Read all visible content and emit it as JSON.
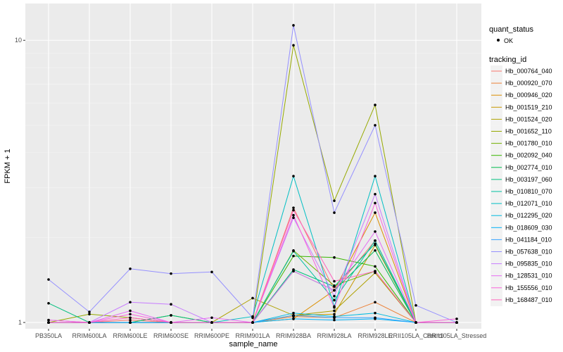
{
  "chart_data": {
    "type": "line",
    "xlabel": "sample_name",
    "ylabel": "FPKM + 1",
    "y_scale": "log10",
    "ylim": [
      0.95,
      13.5
    ],
    "y_ticks": [
      {
        "value": 1,
        "label": "1"
      },
      {
        "value": 10,
        "label": "10"
      }
    ],
    "categories": [
      "PB350LA",
      "RRIM600LA",
      "RRIM600LE",
      "RRIM600SE",
      "RRIM600PE",
      "RRIM901LA",
      "RRIM928BA",
      "RRIM928LA",
      "RRIM928LE",
      "RRII105LA_Control",
      "RRII105LA_Stressed"
    ],
    "legend": {
      "quant_title": "quant_status",
      "quant_label": "OK",
      "tracking_title": "tracking_id"
    },
    "series": [
      {
        "name": "Hb_000764_040",
        "color": "#F8766D",
        "values": [
          1.02,
          1.0,
          1.02,
          1.0,
          1.0,
          1.0,
          2.55,
          1.3,
          1.95,
          1.0,
          1.0
        ]
      },
      {
        "name": "Hb_000920_070",
        "color": "#EC8239",
        "values": [
          1.0,
          1.0,
          1.0,
          1.0,
          1.0,
          1.0,
          1.05,
          1.04,
          1.18,
          1.0,
          1.0
        ]
      },
      {
        "name": "Hb_000946_020",
        "color": "#DB8E00",
        "values": [
          1.0,
          1.0,
          1.0,
          1.0,
          1.0,
          1.0,
          1.03,
          1.3,
          2.45,
          1.0,
          1.0
        ]
      },
      {
        "name": "Hb_001519_210",
        "color": "#C79800",
        "values": [
          1.0,
          1.0,
          1.0,
          1.0,
          1.0,
          1.0,
          1.06,
          1.07,
          1.88,
          1.0,
          1.0
        ]
      },
      {
        "name": "Hb_001524_020",
        "color": "#AFA100",
        "values": [
          1.0,
          1.0,
          1.0,
          1.0,
          1.0,
          1.22,
          1.06,
          1.1,
          1.5,
          1.0,
          1.0
        ]
      },
      {
        "name": "Hb_001652_110",
        "color": "#96A900",
        "values": [
          1.0,
          1.07,
          1.04,
          1.0,
          1.0,
          1.0,
          9.6,
          2.7,
          5.9,
          1.0,
          1.0
        ]
      },
      {
        "name": "Hb_001780_010",
        "color": "#72B000",
        "values": [
          1.0,
          1.0,
          1.0,
          1.06,
          1.0,
          1.0,
          1.8,
          1.35,
          1.52,
          1.0,
          1.0
        ]
      },
      {
        "name": "Hb_002092_040",
        "color": "#39B600",
        "values": [
          1.0,
          1.0,
          1.0,
          1.0,
          1.0,
          1.0,
          1.72,
          1.7,
          1.58,
          1.0,
          1.0
        ]
      },
      {
        "name": "Hb_002774_010",
        "color": "#00BB4E",
        "values": [
          1.0,
          1.0,
          1.0,
          1.0,
          1.0,
          1.0,
          1.52,
          1.3,
          1.8,
          1.0,
          1.0
        ]
      },
      {
        "name": "Hb_003197_060",
        "color": "#00BF7D",
        "values": [
          1.17,
          1.0,
          1.0,
          1.06,
          1.0,
          1.0,
          1.54,
          1.34,
          1.9,
          1.0,
          1.0
        ]
      },
      {
        "name": "Hb_010810_070",
        "color": "#00C1A3",
        "values": [
          1.0,
          1.0,
          1.0,
          1.0,
          1.0,
          1.0,
          1.79,
          1.2,
          1.95,
          1.0,
          1.0
        ]
      },
      {
        "name": "Hb_012071_010",
        "color": "#00BFC4",
        "values": [
          1.0,
          1.0,
          1.0,
          1.0,
          1.0,
          1.05,
          3.3,
          1.14,
          3.3,
          1.0,
          1.0
        ]
      },
      {
        "name": "Hb_012295_020",
        "color": "#00BAE0",
        "values": [
          1.0,
          1.0,
          1.0,
          1.0,
          1.0,
          1.0,
          1.08,
          1.05,
          1.08,
          1.0,
          1.0
        ]
      },
      {
        "name": "Hb_018609_030",
        "color": "#00B0F6",
        "values": [
          1.0,
          1.0,
          1.0,
          1.0,
          1.0,
          1.0,
          1.03,
          1.02,
          1.03,
          1.0,
          1.0
        ]
      },
      {
        "name": "Hb_041184_010",
        "color": "#35A2FF",
        "values": [
          1.0,
          1.0,
          1.0,
          1.0,
          1.0,
          1.0,
          1.06,
          1.04,
          1.04,
          1.0,
          1.0
        ]
      },
      {
        "name": "Hb_057638_010",
        "color": "#9590FF",
        "values": [
          1.42,
          1.09,
          1.55,
          1.49,
          1.51,
          1.04,
          11.3,
          2.45,
          5.0,
          1.15,
          1.0
        ]
      },
      {
        "name": "Hb_095835_010",
        "color": "#C77CFF",
        "values": [
          1.0,
          1.0,
          1.18,
          1.16,
          1.0,
          1.0,
          2.35,
          1.24,
          2.85,
          1.0,
          1.0
        ]
      },
      {
        "name": "Hb_128531_010",
        "color": "#E76BF3",
        "values": [
          1.02,
          1.0,
          1.1,
          1.0,
          1.04,
          1.0,
          1.52,
          1.3,
          2.1,
          1.0,
          1.0
        ]
      },
      {
        "name": "Hb_155556_010",
        "color": "#FA62DB",
        "values": [
          1.0,
          1.0,
          1.07,
          1.0,
          1.0,
          1.0,
          2.4,
          1.13,
          2.65,
          1.0,
          1.03
        ]
      },
      {
        "name": "Hb_168487_010",
        "color": "#FF62BC",
        "values": [
          1.0,
          1.0,
          1.04,
          1.0,
          1.0,
          1.0,
          2.5,
          1.4,
          1.52,
          1.0,
          1.0
        ]
      }
    ]
  }
}
